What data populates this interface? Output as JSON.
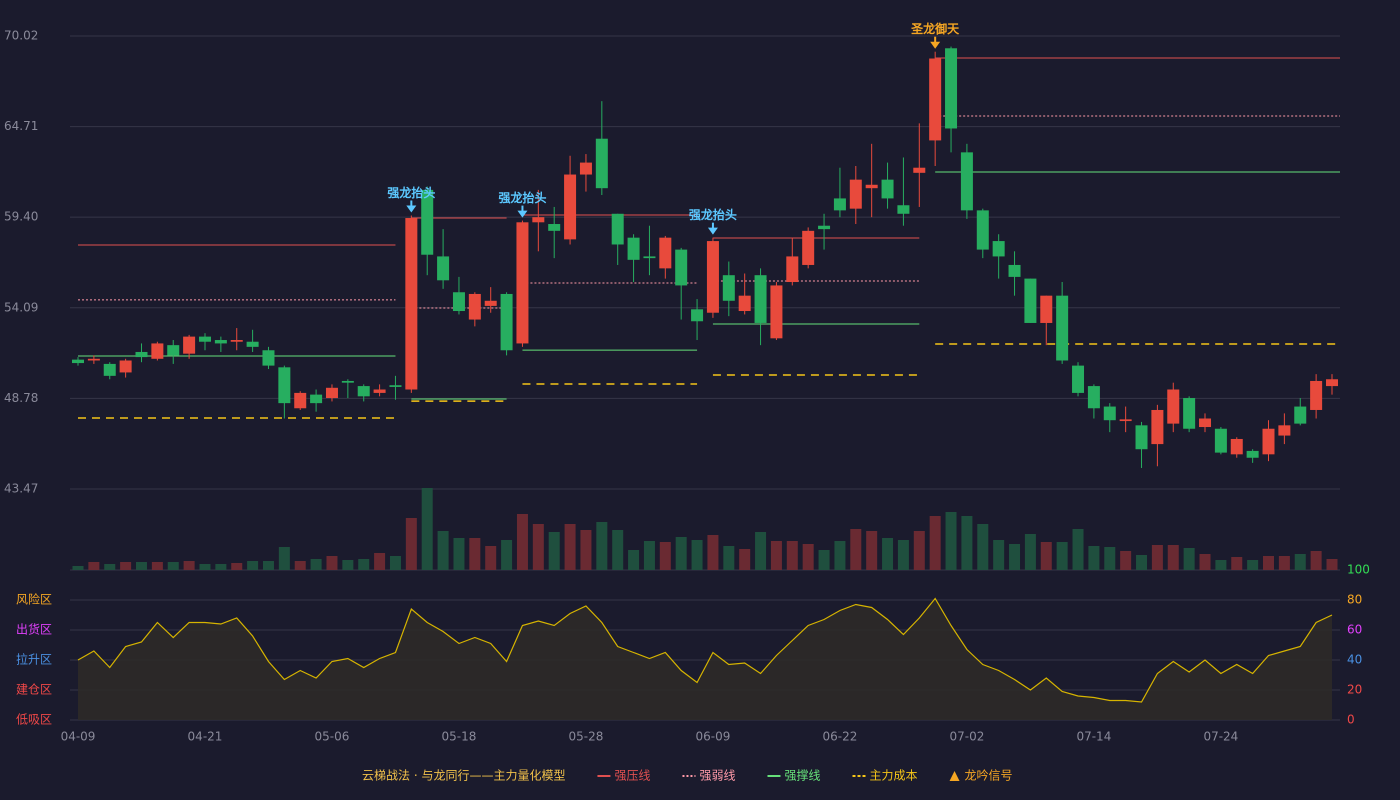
{
  "chart_data": [
    {
      "type": "candlestick",
      "title": "云梯战法 · 与龙同行——主力量化模型",
      "categories": [
        "04-09",
        null,
        null,
        null,
        null,
        null,
        null,
        null,
        "04-21",
        null,
        null,
        null,
        null,
        null,
        null,
        null,
        "05-06",
        null,
        null,
        null,
        null,
        null,
        null,
        null,
        "05-18",
        null,
        null,
        null,
        null,
        null,
        null,
        null,
        "05-28",
        null,
        null,
        null,
        null,
        null,
        null,
        null,
        "06-09",
        null,
        null,
        null,
        null,
        null,
        null,
        null,
        "06-22",
        null,
        null,
        null,
        null,
        null,
        null,
        null,
        "07-02",
        null,
        null,
        null,
        null,
        null,
        null,
        null,
        "07-14",
        null,
        null,
        null,
        null,
        null,
        null,
        null,
        "07-24",
        null,
        null,
        null,
        null,
        null,
        null,
        null
      ],
      "open": [
        51.05,
        51.0,
        50.8,
        50.3,
        51.5,
        51.1,
        51.9,
        51.4,
        52.4,
        52.2,
        52.1,
        52.1,
        51.6,
        50.6,
        48.2,
        49.0,
        48.8,
        49.8,
        49.5,
        49.1,
        49.55,
        49.3,
        61.0,
        57.1,
        55.0,
        53.4,
        54.2,
        54.9,
        52.0,
        59.1,
        59.0,
        58.1,
        61.9,
        64.0,
        59.6,
        58.2,
        57.1,
        56.4,
        57.5,
        54.0,
        53.8,
        56.0,
        53.9,
        56.0,
        52.3,
        55.6,
        56.6,
        58.9,
        60.5,
        59.9,
        61.1,
        61.6,
        60.1,
        62.0,
        63.9,
        69.3,
        63.2,
        59.8,
        58.0,
        56.6,
        55.8,
        53.2,
        54.8,
        50.7,
        49.5,
        48.3,
        47.45,
        47.2,
        46.1,
        47.3,
        48.8,
        47.1,
        47.0,
        45.5,
        45.7,
        45.5,
        46.6,
        48.3,
        48.1,
        49.5
      ],
      "high": [
        51.2,
        51.3,
        50.9,
        51.1,
        52.0,
        52.1,
        52.2,
        52.5,
        52.6,
        52.4,
        52.9,
        52.8,
        51.8,
        50.7,
        49.2,
        49.3,
        49.6,
        49.9,
        49.6,
        49.6,
        50.1,
        59.5,
        61.2,
        58.7,
        55.9,
        55.0,
        55.3,
        55.0,
        59.2,
        61.0,
        60.0,
        63.0,
        63.1,
        66.2,
        59.6,
        58.4,
        58.9,
        58.3,
        57.6,
        54.6,
        58.2,
        56.8,
        56.1,
        56.4,
        55.6,
        58.2,
        58.8,
        59.6,
        62.3,
        62.4,
        63.7,
        62.6,
        62.9,
        64.9,
        69.1,
        69.4,
        63.7,
        59.9,
        58.4,
        57.4,
        55.8,
        54.8,
        55.6,
        50.9,
        49.6,
        48.5,
        48.3,
        47.4,
        48.4,
        49.7,
        48.9,
        47.9,
        47.1,
        46.5,
        45.8,
        47.5,
        47.9,
        48.8,
        50.2,
        50.2
      ],
      "low": [
        50.7,
        50.8,
        49.9,
        50.0,
        50.9,
        51.0,
        50.8,
        51.1,
        51.6,
        51.5,
        51.6,
        51.5,
        50.5,
        47.6,
        48.1,
        48.0,
        48.6,
        48.8,
        48.6,
        48.9,
        48.7,
        49.1,
        56.0,
        55.2,
        53.7,
        53.0,
        53.8,
        51.3,
        51.8,
        57.4,
        57.0,
        57.8,
        60.9,
        60.7,
        56.6,
        55.6,
        56.0,
        55.8,
        53.4,
        52.2,
        53.5,
        53.6,
        53.7,
        51.9,
        52.2,
        55.4,
        56.4,
        57.5,
        59.4,
        59.0,
        59.4,
        59.9,
        58.9,
        60.0,
        62.4,
        63.2,
        59.3,
        57.0,
        55.8,
        54.8,
        53.2,
        51.9,
        50.8,
        48.9,
        47.6,
        46.8,
        46.8,
        44.7,
        44.8,
        46.8,
        46.8,
        46.8,
        45.5,
        45.3,
        45.0,
        45.1,
        46.1,
        47.2,
        47.6,
        49.0
      ],
      "close": [
        50.85,
        51.1,
        50.1,
        51.0,
        51.2,
        52.0,
        51.3,
        52.4,
        52.1,
        52.0,
        52.2,
        51.8,
        50.7,
        48.5,
        49.1,
        48.5,
        49.4,
        49.7,
        48.9,
        49.3,
        49.45,
        59.35,
        57.2,
        55.7,
        53.9,
        54.9,
        54.5,
        51.6,
        59.1,
        59.4,
        58.6,
        61.9,
        62.6,
        61.1,
        57.8,
        56.9,
        57.0,
        58.2,
        55.4,
        53.3,
        58.0,
        54.5,
        54.8,
        53.2,
        55.4,
        57.1,
        58.6,
        58.7,
        59.8,
        61.6,
        61.3,
        60.5,
        59.6,
        62.3,
        68.7,
        64.6,
        59.8,
        57.5,
        57.1,
        55.9,
        53.2,
        54.8,
        51.0,
        49.1,
        48.2,
        47.5,
        47.55,
        45.8,
        48.1,
        49.3,
        47.0,
        47.6,
        45.6,
        46.4,
        45.3,
        47.0,
        47.2,
        47.3,
        49.8,
        49.9
      ],
      "volume": [
        4,
        8,
        6,
        8,
        8,
        8,
        8,
        9,
        6,
        6,
        7,
        9,
        9,
        23,
        9,
        11,
        14,
        10,
        11,
        17,
        14,
        52,
        82,
        39,
        32,
        32,
        24,
        30,
        56,
        46,
        38,
        46,
        40,
        48,
        40,
        20,
        29,
        28,
        33,
        30,
        35,
        24,
        21,
        38,
        29,
        29,
        26,
        20,
        29,
        41,
        39,
        32,
        30,
        39,
        54,
        58,
        54,
        46,
        30,
        26,
        36,
        28,
        28,
        41,
        24,
        23,
        19,
        15,
        25,
        25,
        22,
        16,
        10,
        13,
        10,
        14,
        14,
        16,
        19,
        11
      ],
      "up_color": "#e84a3c",
      "down_color": "#27ae60",
      "volume_up_color": "#6a2a32",
      "volume_down_color": "#1f4f3e",
      "ylim": [
        38.72,
        70.02
      ],
      "yticks": [
        43.47,
        48.78,
        54.09,
        {
          "value": 59.4,
          "label": "59.40"
        },
        64.71,
        70.02
      ],
      "grid": true,
      "levels": [
        {
          "name": "强压线",
          "color": "#e05050",
          "dash": "solid",
          "segments": [
            {
              "start": 0,
              "end": 20,
              "value": 57.77
            },
            {
              "start": 21,
              "end": 27,
              "value": 59.35
            },
            {
              "start": 28,
              "end": 39,
              "value": 59.53
            },
            {
              "start": 40,
              "end": 53,
              "value": 58.18
            },
            {
              "start": 54,
              "end": 79,
              "value": 68.73
            }
          ]
        },
        {
          "name": "强弱线",
          "color": "#ff9aa8",
          "dash": "dotted",
          "segments": [
            {
              "start": 0,
              "end": 20,
              "value": 54.55
            },
            {
              "start": 21,
              "end": 27,
              "value": 54.08
            },
            {
              "start": 28,
              "end": 39,
              "value": 55.54
            },
            {
              "start": 40,
              "end": 53,
              "value": 55.66
            },
            {
              "start": 54,
              "end": 79,
              "value": 65.33
            }
          ]
        },
        {
          "name": "强撑线",
          "color": "#66e07a",
          "dash": "solid",
          "segments": [
            {
              "start": 0,
              "end": 20,
              "value": 51.26
            },
            {
              "start": 21,
              "end": 27,
              "value": 48.74
            },
            {
              "start": 28,
              "end": 39,
              "value": 51.61
            },
            {
              "start": 40,
              "end": 53,
              "value": 53.14
            },
            {
              "start": 54,
              "end": 79,
              "value": 62.05
            }
          ]
        },
        {
          "name": "主力成本",
          "color": "#f5c518",
          "dash": "dashed",
          "segments": [
            {
              "start": 0,
              "end": 20,
              "value": 47.63
            },
            {
              "start": 21,
              "end": 27,
              "value": 48.62
            },
            {
              "start": 28,
              "end": 39,
              "value": 49.62
            },
            {
              "start": 40,
              "end": 53,
              "value": 50.15
            },
            {
              "start": 54,
              "end": 79,
              "value": 51.97
            }
          ]
        }
      ],
      "signals": [
        {
          "index": 21,
          "label": "强龙抬头",
          "color": "#5cc8ff"
        },
        {
          "index": 28,
          "label": "强龙抬头",
          "color": "#5cc8ff"
        },
        {
          "index": 40,
          "label": "强龙抬头",
          "color": "#5cc8ff"
        },
        {
          "index": 54,
          "label": "圣龙御天",
          "color": "#f5a623"
        }
      ],
      "signal_legend": {
        "name": "龙吟信号",
        "color": "#f5a623"
      },
      "title_color": "#f0c04a"
    },
    {
      "type": "line",
      "color": "#d6b400",
      "fill": "#2e2a28",
      "values": [
        40,
        46,
        35,
        49,
        52,
        65,
        55,
        65,
        65,
        64,
        68,
        56,
        39,
        27,
        33,
        28,
        39,
        41,
        35,
        41,
        45,
        74,
        65,
        59,
        51,
        55,
        51,
        39,
        63,
        66,
        63,
        71,
        76,
        65,
        49,
        45,
        41,
        45,
        33,
        25,
        45,
        37,
        38,
        31,
        43,
        53,
        63,
        67,
        73,
        77,
        75,
        67,
        57,
        68,
        81,
        63,
        47,
        37,
        33,
        27,
        20,
        28,
        19,
        16,
        15,
        13,
        13,
        12,
        31,
        39,
        32,
        40,
        31,
        37,
        31,
        43,
        46,
        49,
        65,
        70
      ],
      "ylim": [
        0,
        100
      ],
      "yticks": [
        0,
        20,
        40,
        60,
        80,
        100
      ],
      "ytick_colors": [
        "#f04848",
        "#f04848",
        "#4a90e2",
        "#e040fb",
        "#f5a623",
        "#33dd55"
      ],
      "grid": true,
      "zones": [
        {
          "value": 80,
          "label": "风险区",
          "color": "#f5a623"
        },
        {
          "value": 60,
          "label": "出货区",
          "color": "#e040fb"
        },
        {
          "value": 40,
          "label": "拉升区",
          "color": "#4a90e2"
        },
        {
          "value": 20,
          "label": "建仓区",
          "color": "#f04848"
        },
        {
          "value": 0,
          "label": "低吸区",
          "color": "#f04848"
        }
      ]
    }
  ]
}
